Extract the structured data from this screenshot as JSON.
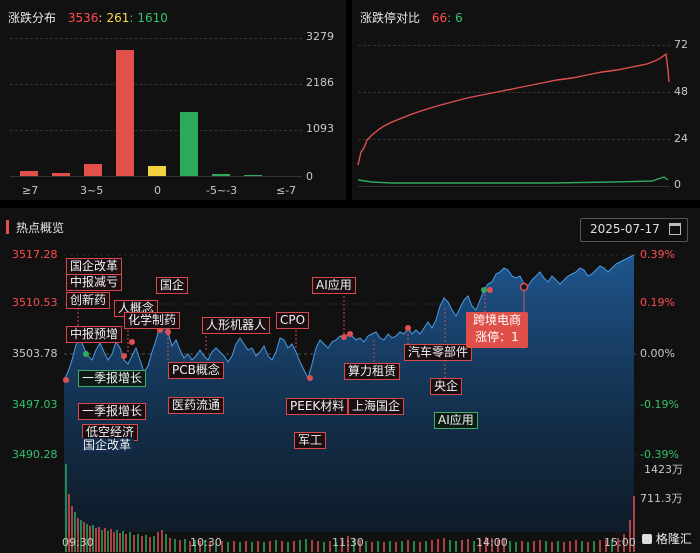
{
  "dist_panel": {
    "title": "涨跌分布",
    "up_count": "3536",
    "sep1": ":",
    "flat_count": "261",
    "sep2": ":",
    "down_count": "1610",
    "y_ticks": [
      "3279",
      "2186",
      "1093",
      "0"
    ],
    "x_ticks": [
      "≥7",
      "3~5",
      "0",
      "-5~-3",
      "≤-7"
    ]
  },
  "limit_panel": {
    "title": "涨跌停对比",
    "limit_up": "66",
    "sep": ":",
    "limit_down": "6",
    "y_ticks": [
      "72",
      "48",
      "24",
      "0"
    ]
  },
  "hot_panel": {
    "title": "热点概览",
    "date": "2025-07-17",
    "calendar_icon": "calendar-icon",
    "y_left": [
      "3517.28",
      "3510.53",
      "3503.78",
      "3497.03",
      "3490.28"
    ],
    "y_right": [
      "0.39%",
      "0.19%",
      "0.00%",
      "-0.19%",
      "-0.39%"
    ],
    "vol_ticks": [
      "1423万",
      "711.3万"
    ],
    "x_ticks": [
      "09:30",
      "10:30",
      "11:30",
      "14:00",
      "15:00"
    ],
    "tags": [
      {
        "id": "t1",
        "text": "国企改革"
      },
      {
        "id": "t2",
        "text": "中报减亏"
      },
      {
        "id": "t3",
        "text": "创新药"
      },
      {
        "id": "t4",
        "text": "人概念"
      },
      {
        "id": "t5",
        "text": "化学制药"
      },
      {
        "id": "t6",
        "text": "国企"
      },
      {
        "id": "t7",
        "text": "AI应用"
      },
      {
        "id": "t8",
        "text": "人形机器人"
      },
      {
        "id": "t9",
        "text": "CPO"
      },
      {
        "id": "t10",
        "text": "中报预增"
      },
      {
        "id": "t11",
        "text": "一季报增长"
      },
      {
        "id": "t12",
        "text": "PCB概念"
      },
      {
        "id": "t13",
        "text": "算力租赁"
      },
      {
        "id": "t14",
        "text": "汽车零部件"
      },
      {
        "id": "t15",
        "text": "央企"
      },
      {
        "id": "t16",
        "text": "一季报增长"
      },
      {
        "id": "t17",
        "text": "医药流通"
      },
      {
        "id": "t18",
        "text": "PEEK材料"
      },
      {
        "id": "t19",
        "text": "上海国企"
      },
      {
        "id": "t20",
        "text": "AI应用"
      },
      {
        "id": "t21",
        "text": "低空经济"
      },
      {
        "id": "t22",
        "text": "国企改革"
      },
      {
        "id": "t23",
        "text": "军工"
      }
    ],
    "popup_line1": "跨境电商",
    "popup_line2": "涨停：1"
  },
  "watermark": "格隆汇",
  "colors": {
    "up": "#e2504c",
    "flat": "#f2d23e",
    "down": "#2eaa5c",
    "line": "#e05050"
  }
}
